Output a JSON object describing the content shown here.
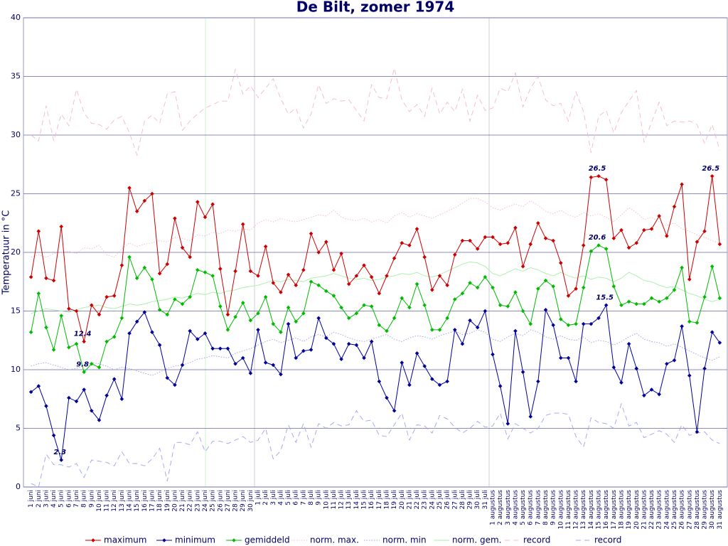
{
  "chart_data": {
    "type": "line",
    "title": "De Bilt, zomer 1974",
    "ylabel": "Temperatuur in °C",
    "ylim": [
      0,
      40
    ],
    "yticks": [
      0,
      5,
      10,
      15,
      20,
      25,
      30,
      35,
      40
    ],
    "grid": true,
    "legend": "bottom",
    "categories": [
      "1 juni",
      "2 juni",
      "3 juni",
      "4 juni",
      "5 juni",
      "6 juni",
      "7 juni",
      "8 juni",
      "9 juni",
      "10 juni",
      "11 juni",
      "12 juni",
      "13 juni",
      "14 juni",
      "15 juni",
      "16 juni",
      "17 juni",
      "18 juni",
      "19 juni",
      "20 juni",
      "21 juni",
      "22 juni",
      "23 juni",
      "24 juni",
      "25 juni",
      "26 juni",
      "27 juni",
      "28 juni",
      "29 juni",
      "30 juni",
      "1 juli",
      "2 juli",
      "3 juli",
      "4 juli",
      "5 juli",
      "6 juli",
      "7 juli",
      "8 juli",
      "9 juli",
      "10 juli",
      "11 juli",
      "12 juli",
      "13 juli",
      "14 juli",
      "15 juli",
      "16 juli",
      "17 juli",
      "18 juli",
      "19 juli",
      "20 juli",
      "21 juli",
      "22 juli",
      "23 juli",
      "24 juli",
      "25 juli",
      "26 juli",
      "27 juli",
      "28 juli",
      "29 juli",
      "30 juli",
      "31 juli",
      "1 augustus",
      "2 augustus",
      "3 augustus",
      "4 augustus",
      "5 augustus",
      "6 augustus",
      "7 augustus",
      "8 augustus",
      "9 augustus",
      "10 augustus",
      "11 augustus",
      "12 augustus",
      "13 augustus",
      "14 augustus",
      "15 augustus",
      "16 augustus",
      "17 augustus",
      "18 augustus",
      "19 augustus",
      "20 augustus",
      "21 augustus",
      "22 augustus",
      "23 augustus",
      "24 augustus",
      "25 augustus",
      "26 augustus",
      "27 augustus",
      "28 augustus",
      "29 augustus",
      "30 augustus",
      "31 augustus"
    ],
    "series": [
      {
        "name": "maximum",
        "color": "#cc0000",
        "line": "solid",
        "marker": true,
        "labeled": [
          7,
          75,
          90
        ],
        "values": [
          17.9,
          21.8,
          17.8,
          17.6,
          22.2,
          15.2,
          15.0,
          12.4,
          15.5,
          14.7,
          16.2,
          16.3,
          18.9,
          25.5,
          23.5,
          24.4,
          25.0,
          18.2,
          19.0,
          22.9,
          20.4,
          19.6,
          24.3,
          23.0,
          24.1,
          18.6,
          14.7,
          18.4,
          22.4,
          18.4,
          18.0,
          20.5,
          17.4,
          16.6,
          18.1,
          17.2,
          18.5,
          21.6,
          20.0,
          20.9,
          18.5,
          19.9,
          17.3,
          18.0,
          18.9,
          17.9,
          16.5,
          18.0,
          19.5,
          20.8,
          20.6,
          22.0,
          19.6,
          16.8,
          18.0,
          17.2,
          19.8,
          21.0,
          21.0,
          20.3,
          21.3,
          21.3,
          20.7,
          20.8,
          22.1,
          18.8,
          20.7,
          22.5,
          21.2,
          21.0,
          19.1,
          16.3,
          16.9,
          20.6,
          26.4,
          26.5,
          26.2,
          21.2,
          21.9,
          20.4,
          20.8,
          21.9,
          22.0,
          23.1,
          21.4,
          23.9,
          25.8,
          17.7,
          20.9,
          21.8,
          26.5,
          20.7
        ]
      },
      {
        "name": "minimum",
        "color": "#000099",
        "line": "solid",
        "marker": true,
        "labeled": [
          4,
          76
        ],
        "values": [
          8.1,
          8.6,
          6.9,
          4.4,
          2.3,
          7.6,
          7.3,
          8.3,
          6.5,
          5.7,
          7.8,
          9.2,
          7.5,
          13.1,
          14.1,
          14.9,
          13.2,
          12.1,
          9.3,
          8.7,
          10.4,
          13.3,
          12.6,
          13.1,
          11.8,
          11.8,
          11.8,
          10.5,
          11.0,
          9.7,
          13.4,
          10.6,
          10.4,
          9.6,
          13.9,
          11.0,
          11.6,
          11.7,
          14.4,
          12.7,
          12.2,
          10.9,
          12.2,
          12.1,
          11.0,
          12.4,
          9.0,
          7.6,
          6.5,
          10.6,
          8.7,
          11.4,
          10.3,
          9.2,
          8.7,
          9.0,
          13.4,
          12.2,
          14.2,
          13.6,
          15.0,
          11.3,
          8.6,
          5.4,
          13.3,
          9.8,
          6.0,
          9.0,
          15.1,
          13.8,
          11.0,
          11.0,
          9.0,
          13.9,
          13.9,
          14.4,
          15.5,
          10.2,
          8.9,
          12.2,
          10.1,
          7.8,
          8.3,
          7.9,
          10.5,
          10.8,
          13.7,
          9.5,
          4.7,
          10.1,
          13.2,
          12.3
        ]
      },
      {
        "name": "gemiddeld",
        "color": "#00bb00",
        "line": "solid",
        "marker": true,
        "labeled": [
          7,
          75
        ],
        "values": [
          13.2,
          16.5,
          13.6,
          11.7,
          14.6,
          11.9,
          12.2,
          9.8,
          10.5,
          10.2,
          12.4,
          12.8,
          14.4,
          19.6,
          17.8,
          18.7,
          17.7,
          15.1,
          14.7,
          16.0,
          15.6,
          16.2,
          18.5,
          18.3,
          18.0,
          15.4,
          13.4,
          14.5,
          15.7,
          14.2,
          14.8,
          16.2,
          13.9,
          13.2,
          15.3,
          14.1,
          14.8,
          17.5,
          17.2,
          16.7,
          16.3,
          15.3,
          14.4,
          14.8,
          15.5,
          15.4,
          13.8,
          13.3,
          14.4,
          16.1,
          15.3,
          17.3,
          15.5,
          13.4,
          13.4,
          14.4,
          16.0,
          16.5,
          17.4,
          17.0,
          17.9,
          17.0,
          15.5,
          15.4,
          16.6,
          15.0,
          13.9,
          16.9,
          17.6,
          17.1,
          14.3,
          13.8,
          13.9,
          17.0,
          20.1,
          20.6,
          20.3,
          17.1,
          15.5,
          15.8,
          15.6,
          15.6,
          16.1,
          15.8,
          16.1,
          16.8,
          18.7,
          14.1,
          14.0,
          16.2,
          18.8,
          16.1
        ]
      },
      {
        "name": "norm. max.",
        "color": "#f4b8c8",
        "line": "dotted",
        "marker": false,
        "values": [
          19.6,
          19.8,
          19.6,
          19.9,
          20.0,
          20.1,
          19.9,
          20.4,
          20.3,
          20.6,
          19.8,
          19.6,
          20.3,
          20.8,
          20.5,
          20.7,
          20.8,
          21.0,
          20.9,
          21.3,
          21.2,
          21.0,
          21.5,
          21.4,
          21.7,
          21.6,
          21.9,
          21.8,
          22.0,
          21.9,
          22.5,
          22.8,
          22.6,
          22.9,
          22.7,
          22.6,
          22.8,
          23.0,
          23.2,
          23.1,
          23.6,
          23.0,
          22.8,
          22.7,
          22.9,
          22.6,
          22.8,
          22.5,
          23.1,
          23.4,
          23.0,
          23.3,
          23.1,
          22.9,
          23.2,
          23.5,
          23.8,
          24.2,
          24.6,
          24.6,
          24.3,
          23.8,
          23.6,
          23.9,
          24.1,
          23.9,
          24.4,
          24.0,
          23.5,
          23.3,
          23.6,
          23.2,
          23.0,
          23.4,
          23.1,
          23.3,
          23.0,
          22.6,
          23.2,
          23.8,
          23.4,
          22.8,
          23.0,
          22.6,
          22.3,
          22.5,
          22.0,
          21.8,
          21.5,
          21.3,
          21.0,
          20.8
        ]
      },
      {
        "name": "norm. min",
        "color": "#9c9ce6",
        "line": "dotted",
        "marker": false,
        "values": [
          10.3,
          10.5,
          10.6,
          10.4,
          10.2,
          10.0,
          10.1,
          10.4,
          10.6,
          10.5,
          10.3,
          10.0,
          10.2,
          10.1,
          9.9,
          9.7,
          9.5,
          9.8,
          10.1,
          10.3,
          10.4,
          10.6,
          10.9,
          11.0,
          11.2,
          11.1,
          11.0,
          11.4,
          11.6,
          11.8,
          12.1,
          12.4,
          12.6,
          12.3,
          12.5,
          12.7,
          12.4,
          12.8,
          13.0,
          12.8,
          13.2,
          13.0,
          12.7,
          12.5,
          12.4,
          12.6,
          12.8,
          13.0,
          12.6,
          12.4,
          12.7,
          12.9,
          12.8,
          12.6,
          12.9,
          13.1,
          13.3,
          13.0,
          13.1,
          13.4,
          13.2,
          12.6,
          12.4,
          12.8,
          13.1,
          12.9,
          13.4,
          13.2,
          12.8,
          12.6,
          12.9,
          12.6,
          12.5,
          12.8,
          12.3,
          12.5,
          12.4,
          12.1,
          12.4,
          12.8,
          13.1,
          12.6,
          12.4,
          12.3,
          12.0,
          12.2,
          11.9,
          11.6,
          11.3,
          11.0,
          10.8,
          11.1
        ]
      },
      {
        "name": "norm. gem.",
        "color": "#a6eea6",
        "line": "solid",
        "marker": false,
        "values": [
          14.8,
          15.0,
          15.2,
          15.1,
          15.0,
          14.9,
          15.1,
          15.3,
          15.4,
          15.5,
          15.3,
          15.2,
          15.4,
          15.6,
          15.5,
          15.6,
          15.8,
          15.9,
          16.0,
          16.2,
          16.1,
          16.3,
          16.5,
          16.4,
          16.6,
          16.5,
          16.7,
          16.8,
          17.0,
          17.1,
          17.2,
          17.4,
          17.6,
          17.5,
          17.7,
          17.6,
          17.5,
          17.8,
          17.9,
          18.0,
          18.2,
          18.0,
          17.8,
          17.7,
          17.8,
          17.6,
          17.7,
          17.9,
          18.0,
          18.2,
          18.1,
          18.3,
          18.0,
          17.9,
          18.1,
          18.4,
          18.7,
          19.0,
          19.2,
          19.1,
          18.8,
          18.2,
          18.0,
          18.3,
          18.6,
          18.4,
          18.7,
          18.5,
          18.2,
          18.0,
          18.3,
          18.0,
          17.8,
          18.0,
          17.7,
          17.9,
          17.8,
          17.5,
          17.8,
          18.3,
          18.0,
          17.6,
          17.5,
          17.2,
          17.0,
          17.1,
          16.8,
          16.5,
          16.3,
          16.0,
          15.8,
          16.0
        ]
      },
      {
        "name": "record",
        "color": "#f4b8c8",
        "line": "dashed",
        "marker": false,
        "values": [
          30.0,
          29.5,
          32.5,
          29.5,
          31.8,
          30.8,
          33.9,
          31.9,
          31.0,
          30.9,
          30.5,
          31.3,
          31.6,
          30.2,
          28.3,
          31.2,
          31.7,
          31.0,
          33.5,
          33.7,
          30.4,
          31.2,
          31.8,
          32.3,
          32.6,
          32.9,
          32.9,
          35.6,
          33.5,
          34.2,
          33.2,
          34.0,
          34.8,
          33.1,
          31.8,
          32.3,
          30.6,
          31.8,
          34.3,
          32.7,
          33.1,
          32.9,
          33.0,
          32.1,
          31.2,
          34.3,
          33.2,
          33.1,
          35.7,
          33.0,
          32.0,
          32.6,
          31.6,
          34.0,
          31.8,
          32.8,
          32.0,
          33.9,
          31.2,
          33.4,
          32.1,
          32.3,
          34.0,
          33.7,
          35.3,
          32.4,
          34.0,
          35.0,
          33.0,
          32.5,
          32.7,
          31.2,
          33.7,
          32.0,
          28.5,
          31.6,
          32.1,
          30.2,
          31.9,
          32.9,
          33.8,
          29.4,
          31.1,
          32.8,
          30.8,
          31.2,
          31.1,
          31.2,
          30.9,
          29.3,
          30.9,
          28.7
        ]
      },
      {
        "name": "record",
        "color": "#a0a0f0",
        "line": "dashed",
        "marker": false,
        "values": [
          0.3,
          0.0,
          2.8,
          1.9,
          1.9,
          1.7,
          2.0,
          0.8,
          2.3,
          2.2,
          2.1,
          1.8,
          3.0,
          2.0,
          2.0,
          1.8,
          2.4,
          3.3,
          0.5,
          3.8,
          3.8,
          3.6,
          4.7,
          3.0,
          3.9,
          3.9,
          3.7,
          4.0,
          4.3,
          3.8,
          4.0,
          5.0,
          2.4,
          3.1,
          5.3,
          3.8,
          5.4,
          3.4,
          5.4,
          5.0,
          5.5,
          5.2,
          5.3,
          6.5,
          5.6,
          5.7,
          4.4,
          4.3,
          5.3,
          6.3,
          4.0,
          5.3,
          5.2,
          4.6,
          6.1,
          5.8,
          5.1,
          4.6,
          5.0,
          5.6,
          5.1,
          5.2,
          6.3,
          4.1,
          5.4,
          5.0,
          4.6,
          5.0,
          6.1,
          6.3,
          6.3,
          6.2,
          4.3,
          3.4,
          5.9,
          5.5,
          5.4,
          5.0,
          7.1,
          5.2,
          5.5,
          4.2,
          4.5,
          4.8,
          4.5,
          3.8,
          5.3,
          4.4,
          4.6,
          4.7,
          4.0,
          3.7
        ]
      }
    ]
  }
}
